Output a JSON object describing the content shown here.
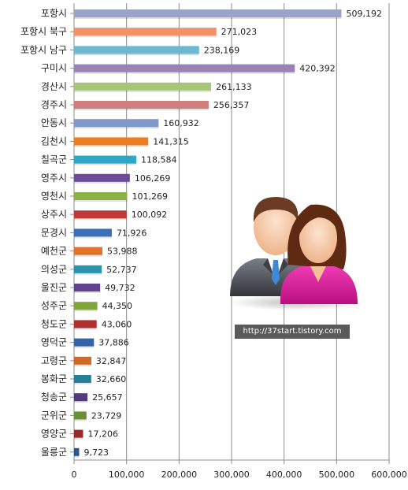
{
  "chart_data": {
    "type": "bar",
    "orientation": "horizontal",
    "title": "",
    "xlabel": "",
    "ylabel": "",
    "xlim": [
      0,
      600000
    ],
    "x_ticks": [
      "0",
      "100,000",
      "200,000",
      "300,000",
      "400,000",
      "500,000",
      "600,000"
    ],
    "grid": true,
    "legend": "none",
    "categories": [
      "포항시",
      "포항시 북구",
      "포항시 남구",
      "구미시",
      "경산시",
      "경주시",
      "안동시",
      "김천시",
      "칠곡군",
      "영주시",
      "영천시",
      "상주시",
      "문경시",
      "예천군",
      "의성군",
      "울진군",
      "성주군",
      "청도군",
      "영덕군",
      "고령군",
      "봉화군",
      "청송군",
      "군위군",
      "영양군",
      "울릉군"
    ],
    "values": [
      509192,
      271023,
      238169,
      420392,
      261133,
      256357,
      160932,
      141315,
      118584,
      106269,
      101269,
      100092,
      71926,
      53988,
      52737,
      49732,
      44350,
      43060,
      37886,
      32847,
      32660,
      25657,
      23729,
      17206,
      9723
    ],
    "value_labels": [
      "509,192",
      "271,023",
      "238,169",
      "420,392",
      "261,133",
      "256,357",
      "160,932",
      "141,315",
      "118,584",
      "106,269",
      "101,269",
      "100,092",
      "71,926",
      "53,988",
      "52,737",
      "49,732",
      "44,350",
      "43,060",
      "37,886",
      "32,847",
      "32,660",
      "25,657",
      "23,729",
      "17,206",
      "9,723"
    ],
    "colors": [
      "#9aa3c8",
      "#f0936a",
      "#6cb8d2",
      "#9a82b6",
      "#a8c67a",
      "#cf7e7c",
      "#7f9ac8",
      "#ee7d22",
      "#2fa6c4",
      "#6c4c9a",
      "#8bb244",
      "#bf3a36",
      "#3b6db8",
      "#e0732a",
      "#2a93ae",
      "#62448e",
      "#7ea43a",
      "#b0302e",
      "#3563a8",
      "#cf6a26",
      "#267f98",
      "#533a7c",
      "#6c8e34",
      "#9a2a28",
      "#2c5590"
    ]
  },
  "watermark": "http://37start.tistory.com",
  "illustration": {
    "icon": "business-people-icon",
    "colors": {
      "skin": "#f7c9a6",
      "hair_man": "#6b3b23",
      "hair_woman": "#5e2a12",
      "suit": "#555a60",
      "shirt": "#ffffff",
      "tie": "#3e8ad6",
      "woman_top": "#e01a9e"
    }
  }
}
